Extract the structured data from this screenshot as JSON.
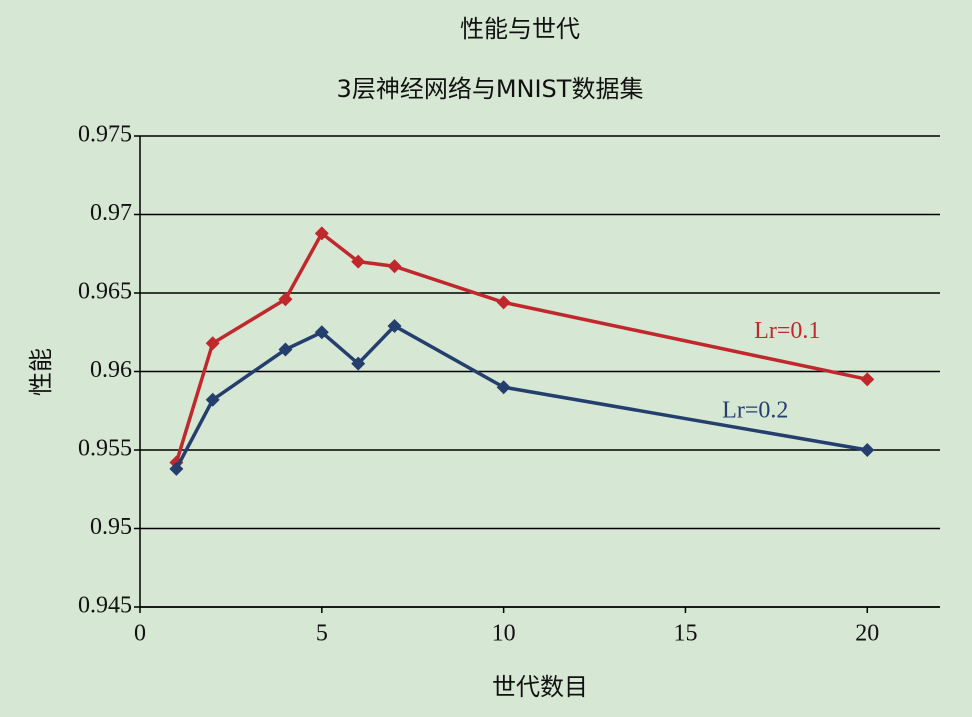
{
  "chart_data": {
    "type": "line",
    "title": "性能与世代",
    "subtitle": "3层神经网络与MNIST数据集",
    "x_label": "世代数目",
    "y_label": "性能",
    "xlim": [
      0,
      22
    ],
    "xticks": [
      0,
      5,
      10,
      15,
      20
    ],
    "ylim": [
      0.945,
      0.975
    ],
    "yticks": [
      0.945,
      0.95,
      0.955,
      0.96,
      0.965,
      0.97,
      0.975
    ],
    "grid": true,
    "x": [
      1,
      2,
      4,
      5,
      6,
      7,
      10,
      20
    ],
    "series": [
      {
        "name": "Lr=0.1",
        "color": "#c0282d",
        "values": [
          0.9542,
          0.9618,
          0.9646,
          0.9688,
          0.967,
          0.9667,
          0.9644,
          0.9595
        ]
      },
      {
        "name": "Lr=0.2",
        "color": "#243f6e",
        "values": [
          0.9538,
          0.9582,
          0.9614,
          0.9625,
          0.9605,
          0.9629,
          0.959,
          0.955
        ]
      }
    ]
  }
}
